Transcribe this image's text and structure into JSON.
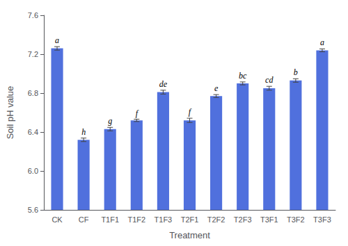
{
  "chart_data": {
    "type": "bar",
    "categories": [
      "CK",
      "CF",
      "T1F1",
      "T1F2",
      "T1F3",
      "T2F1",
      "T2F2",
      "T2F3",
      "T3F1",
      "T3F2",
      "T3F3"
    ],
    "values": [
      7.26,
      6.32,
      6.43,
      6.52,
      6.81,
      6.52,
      6.77,
      6.9,
      6.85,
      6.93,
      7.24
    ],
    "errors": [
      0.018,
      0.018,
      0.018,
      0.012,
      0.02,
      0.022,
      0.015,
      0.015,
      0.02,
      0.018,
      0.015
    ],
    "annotations": [
      "a",
      "h",
      "g",
      "f",
      "de",
      "f",
      "e",
      "bc",
      "cd",
      "b",
      "a"
    ],
    "xlabel": "Treatment",
    "ylabel": "Soil pH value",
    "ylim": [
      5.6,
      7.6
    ],
    "yticks": [
      5.6,
      {
        "value": 6,
        "label": "6.0"
      },
      6.4,
      6.8,
      7.2,
      7.6
    ],
    "grid": false
  }
}
